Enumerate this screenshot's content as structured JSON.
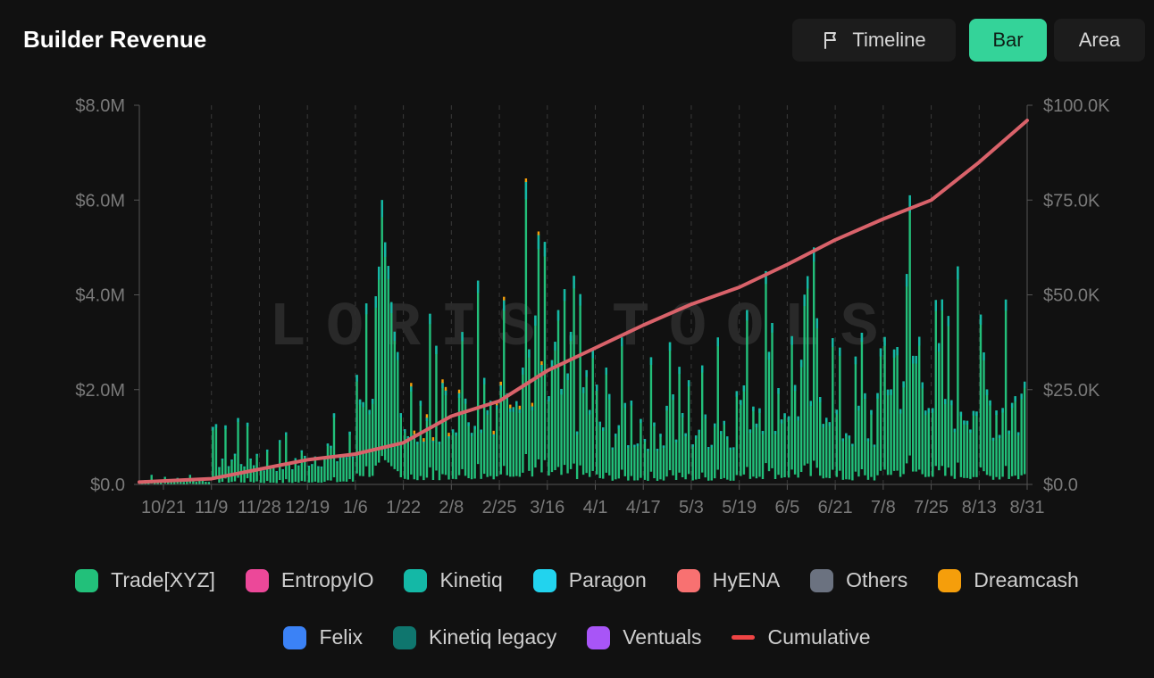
{
  "header": {
    "title": "Builder Revenue",
    "buttons": [
      {
        "label": "Timeline",
        "icon": "flag-icon",
        "active": false
      },
      {
        "label": "Bar",
        "active": true
      },
      {
        "label": "Area",
        "active": false
      }
    ]
  },
  "watermark": "LORIS.TOOLS",
  "colors": {
    "background": "#111111",
    "accent": "#34d399",
    "grid": "#3a3a3a",
    "axis_text": "#7a7a7a"
  },
  "chart_data": {
    "type": "bar",
    "title": "Builder Revenue",
    "stacked": true,
    "x_tick_labels": [
      "10/21",
      "11/9",
      "11/28",
      "12/19",
      "1/6",
      "1/22",
      "2/8",
      "2/25",
      "3/16",
      "4/1",
      "4/17",
      "5/3",
      "5/19",
      "6/5",
      "6/21",
      "7/8",
      "7/25",
      "8/13",
      "8/31"
    ],
    "y_left": {
      "range": [
        0,
        8000000
      ],
      "tick_labels": [
        "$0.0",
        "$2.0M",
        "$4.0M",
        "$6.0M",
        "$8.0M"
      ],
      "tick_values": [
        0,
        2000000,
        4000000,
        6000000,
        8000000
      ]
    },
    "y_right": {
      "range": [
        0,
        100000
      ],
      "tick_labels": [
        "$0.0",
        "$25.0K",
        "$50.0K",
        "$75.0K",
        "$100.0K"
      ],
      "tick_values": [
        0,
        25000,
        50000,
        75000,
        100000
      ]
    },
    "grid": true,
    "legend_position": "bottom",
    "series": [
      {
        "name": "Trade[XYZ]",
        "color": "#22c07a"
      },
      {
        "name": "EntropyIO",
        "color": "#ec4899"
      },
      {
        "name": "Kinetiq",
        "color": "#14b8a6"
      },
      {
        "name": "Paragon",
        "color": "#22d3ee"
      },
      {
        "name": "HyENA",
        "color": "#f87171"
      },
      {
        "name": "Others",
        "color": "#6b7280"
      },
      {
        "name": "Dreamcash",
        "color": "#f59e0b"
      },
      {
        "name": "Felix",
        "color": "#3b82f6"
      },
      {
        "name": "Kinetiq legacy",
        "color": "#0f766e"
      },
      {
        "name": "Ventuals",
        "color": "#a855f7"
      },
      {
        "name": "Cumulative",
        "color": "#ef4444",
        "kind": "line"
      }
    ],
    "bar_totals_by_period": [
      {
        "period": "10/21",
        "approx_max": 200000
      },
      {
        "period": "11/9",
        "approx_max": 200000
      },
      {
        "period": "11/28",
        "approx_max": 1400000
      },
      {
        "period": "12/19",
        "approx_max": 1100000
      },
      {
        "period": "1/6",
        "approx_max": 1500000
      },
      {
        "period": "1/22",
        "approx_max": 6000000
      },
      {
        "period": "2/8",
        "approx_max": 3600000
      },
      {
        "period": "2/25",
        "approx_max": 4300000
      },
      {
        "period": "3/16",
        "approx_max": 6400000
      },
      {
        "period": "4/1",
        "approx_max": 4400000
      },
      {
        "period": "4/17",
        "approx_max": 3100000
      },
      {
        "period": "5/3",
        "approx_max": 3000000
      },
      {
        "period": "5/19",
        "approx_max": 3100000
      },
      {
        "period": "6/5",
        "approx_max": 4500000
      },
      {
        "period": "6/21",
        "approx_max": 5000000
      },
      {
        "period": "7/8",
        "approx_max": 3200000
      },
      {
        "period": "7/25",
        "approx_max": 6100000
      },
      {
        "period": "8/13",
        "approx_max": 4600000
      },
      {
        "period": "8/31",
        "approx_max": 3900000
      }
    ],
    "cumulative": {
      "x": [
        "10/21",
        "11/9",
        "11/28",
        "12/19",
        "1/6",
        "1/22",
        "2/8",
        "2/25",
        "3/16",
        "4/1",
        "4/17",
        "5/3",
        "5/19",
        "6/5",
        "6/21",
        "7/8",
        "7/25",
        "8/13",
        "8/31"
      ],
      "y": [
        600,
        1500,
        4000,
        6500,
        8000,
        11000,
        18000,
        22000,
        30000,
        36000,
        42000,
        47500,
        52000,
        58000,
        64500,
        70000,
        75000,
        85000,
        96000
      ]
    }
  }
}
